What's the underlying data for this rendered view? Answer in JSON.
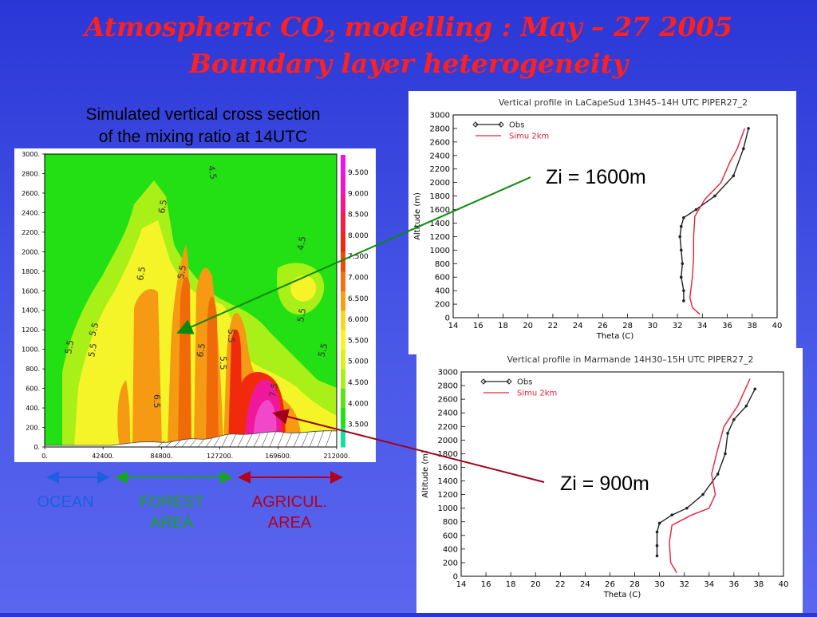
{
  "slide": {
    "title_line1_main": "Atmospheric CO",
    "title_line1_sub": "2",
    "title_line1_rest": " modelling : May – 27 2005",
    "title_line2": "Boundary layer heterogeneity",
    "caption_line1": "Simulated vertical cross section",
    "caption_line2": "of the mixing ratio at 14UTC"
  },
  "cross_section": {
    "y_ticks": [
      "3000.",
      "2800.",
      "2600.",
      "2400.",
      "2200.",
      "2000.",
      "1800.",
      "1600.",
      "1400.",
      "1200.",
      "1000.",
      "800.",
      "600.",
      "400.",
      "200.",
      "0."
    ],
    "x_ticks": [
      "0.",
      "42400.",
      "84800.",
      "127200.",
      "169600.",
      "212000."
    ],
    "colorbar_labels": [
      "9.500",
      "9.000",
      "8.500",
      "8.000",
      "7.500",
      "7.000",
      "6.500",
      "6.000",
      "5.500",
      "5.000",
      "4.500",
      "4.000",
      "3.500"
    ],
    "contour_labels": [
      "4.5",
      "5.5",
      "5.5",
      "6.5",
      "6.5",
      "5.5",
      "5.5",
      "6.5",
      "4.5",
      "5.5",
      "7.5",
      "5.5",
      "5.5",
      "6.5",
      "5.5"
    ],
    "colors": {
      "green": "#22e014",
      "lime": "#a8f018",
      "yellow": "#f4f428",
      "orange": "#f59a12",
      "orange_dark": "#f06a0a",
      "red": "#f02a0a",
      "magenta": "#f0189a",
      "pink": "#f048c8"
    }
  },
  "zones": {
    "ocean_label": "OCEAN",
    "forest_label_1": "FOREST",
    "forest_label_2": "AREA",
    "agri_label_1": "AGRICUL.",
    "agri_label_2": "AREA",
    "ocean_color": "#1c5fe0",
    "forest_color": "#16a326",
    "agri_color": "#b3001b"
  },
  "annotations": {
    "zi_top": "Zi = 1600m",
    "zi_bottom": "Zi = 900m",
    "arrow_top_color": "#0a8a0a",
    "arrow_bottom_color": "#a0001a"
  },
  "chart_data": [
    {
      "type": "line",
      "title": "Vertical profile in LaCapeSud 13H45–14H UTC PIPER27_2",
      "xlabel": "Theta (C)",
      "ylabel": "Altitude (m)",
      "xlim": [
        14,
        40
      ],
      "ylim": [
        0,
        3000
      ],
      "x_ticks": [
        "14",
        "16",
        "18",
        "20",
        "22",
        "24",
        "26",
        "28",
        "30",
        "32",
        "34",
        "36",
        "38",
        "40"
      ],
      "y_ticks": [
        "0",
        "200",
        "400",
        "600",
        "800",
        "1000",
        "1200",
        "1400",
        "1600",
        "1800",
        "2000",
        "2200",
        "2400",
        "2600",
        "2800",
        "3000"
      ],
      "series": [
        {
          "name": "Obs",
          "color": "#222222",
          "points": [
            [
              32.5,
              250
            ],
            [
              32.5,
              400
            ],
            [
              32.3,
              600
            ],
            [
              32.4,
              800
            ],
            [
              32.3,
              1000
            ],
            [
              32.2,
              1200
            ],
            [
              32.3,
              1350
            ],
            [
              32.5,
              1480
            ],
            [
              33.5,
              1600
            ],
            [
              35,
              1800
            ],
            [
              36.5,
              2100
            ],
            [
              37.3,
              2500
            ],
            [
              37.7,
              2800
            ]
          ]
        },
        {
          "name": "Simu 2km",
          "color": "#e8203a",
          "points": [
            [
              33.8,
              50
            ],
            [
              33.2,
              150
            ],
            [
              33,
              300
            ],
            [
              33.2,
              600
            ],
            [
              33.3,
              900
            ],
            [
              33.3,
              1200
            ],
            [
              33.4,
              1500
            ],
            [
              34.2,
              1750
            ],
            [
              35.5,
              2000
            ],
            [
              36.2,
              2300
            ],
            [
              36.8,
              2500
            ],
            [
              37.4,
              2800
            ]
          ]
        }
      ]
    },
    {
      "type": "line",
      "title": "Vertical profile in Marmande 14H30–15H UTC PIPER27_2",
      "xlabel": "Theta (C)",
      "ylabel": "Altitude (m)",
      "xlim": [
        14,
        40
      ],
      "ylim": [
        0,
        3000
      ],
      "x_ticks": [
        "14",
        "16",
        "18",
        "20",
        "22",
        "24",
        "26",
        "28",
        "30",
        "32",
        "34",
        "36",
        "38",
        "40"
      ],
      "y_ticks": [
        "0",
        "200",
        "400",
        "600",
        "800",
        "1000",
        "1200",
        "1400",
        "1600",
        "1800",
        "2000",
        "2200",
        "2400",
        "2600",
        "2800",
        "3000"
      ],
      "series": [
        {
          "name": "Obs",
          "color": "#222222",
          "points": [
            [
              29.8,
              300
            ],
            [
              29.8,
              450
            ],
            [
              29.8,
              650
            ],
            [
              30,
              780
            ],
            [
              31,
              900
            ],
            [
              32.2,
              1000
            ],
            [
              33.5,
              1200
            ],
            [
              34.7,
              1500
            ],
            [
              35.3,
              1800
            ],
            [
              35.5,
              2100
            ],
            [
              36,
              2300
            ],
            [
              37,
              2500
            ],
            [
              37.7,
              2750
            ]
          ]
        },
        {
          "name": "Simu 2km",
          "color": "#e8203a",
          "points": [
            [
              31.4,
              50
            ],
            [
              30.9,
              200
            ],
            [
              30.8,
              500
            ],
            [
              31,
              750
            ],
            [
              32.6,
              900
            ],
            [
              34,
              1000
            ],
            [
              34.5,
              1200
            ],
            [
              34.2,
              1500
            ],
            [
              34.6,
              1800
            ],
            [
              35.2,
              2200
            ],
            [
              36.3,
              2500
            ],
            [
              37.3,
              2900
            ]
          ]
        }
      ]
    }
  ]
}
